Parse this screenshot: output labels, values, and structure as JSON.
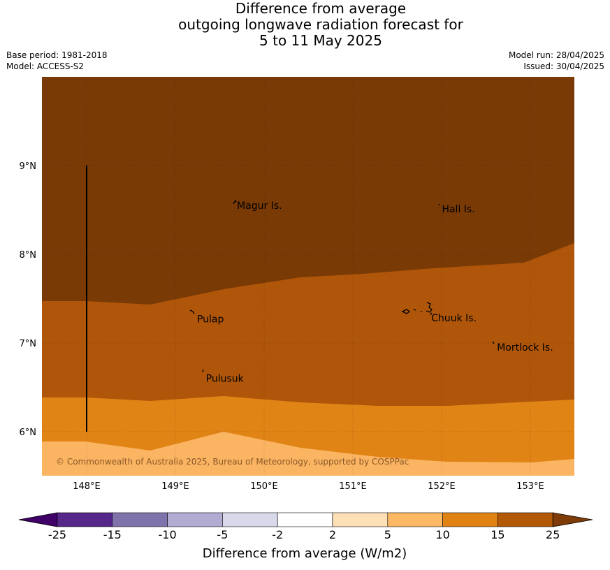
{
  "title": {
    "line1": "Difference from average",
    "line2": "outgoing longwave radiation forecast for",
    "line3": "5 to 11 May 2025"
  },
  "info": {
    "base_period": "Base period: 1981-2018",
    "model": "Model: ACCESS-S2",
    "model_run": "Model run: 28/04/2025",
    "issued": "Issued: 30/04/2025"
  },
  "map": {
    "lat_labels": [
      "9°N",
      "8°N",
      "7°N",
      "6°N"
    ],
    "lon_labels": [
      "148°E",
      "149°E",
      "150°E",
      "151°E",
      "152°E",
      "153°E"
    ],
    "places": [
      {
        "name": "Magur Is.",
        "lon": 149.67,
        "lat": 8.56
      },
      {
        "name": "Hall Is.",
        "lon": 151.98,
        "lat": 8.52
      },
      {
        "name": "Pulap",
        "lon": 149.22,
        "lat": 7.28
      },
      {
        "name": "Chuuk Is.",
        "lon": 151.86,
        "lat": 7.29
      },
      {
        "name": "Mortlock Is.",
        "lon": 152.6,
        "lat": 6.96
      },
      {
        "name": "Pulusuk",
        "lon": 149.32,
        "lat": 6.61
      }
    ],
    "copyright": "© Commonwealth of Australia 2025, Bureau of Meteorology, supported by COSPPac",
    "colors": {
      "gt25": "#7a3a06",
      "15_25": "#b0560a",
      "10_15": "#e08416",
      "5_10": "#fbb461"
    }
  },
  "colorbar": {
    "title": "Difference from average (W/m2)",
    "ticks": [
      "-25",
      "-15",
      "-10",
      "-5",
      "-2",
      "2",
      "5",
      "10",
      "15",
      "25"
    ],
    "colors": [
      "#3f0067",
      "#542788",
      "#8073ac",
      "#b2abd2",
      "#d8daeb",
      "#ffffff",
      "#fee0b6",
      "#fdb863",
      "#e08214",
      "#b35806",
      "#7f3b08"
    ]
  }
}
